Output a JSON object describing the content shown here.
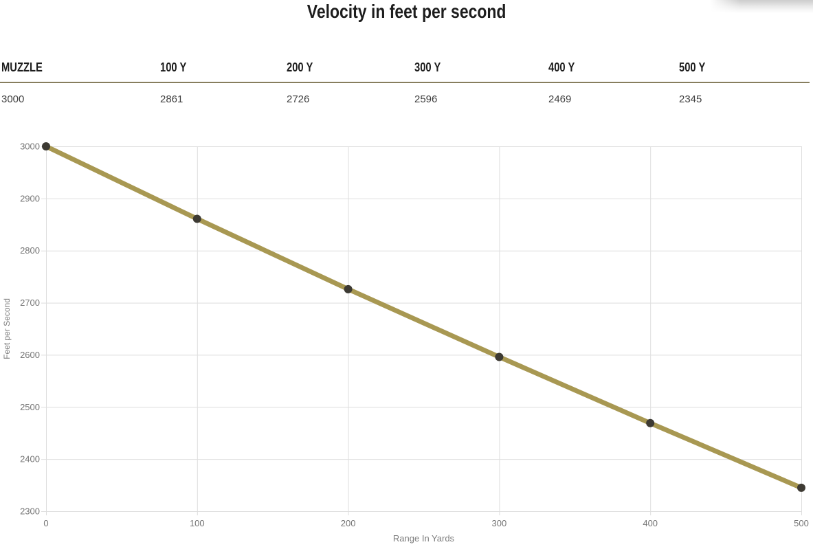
{
  "page": {
    "title": "Velocity in feet per second"
  },
  "table": {
    "headers": [
      "MUZZLE",
      "100 Y",
      "200 Y",
      "300 Y",
      "400 Y",
      "500 Y"
    ],
    "values": [
      "3000",
      "2861",
      "2726",
      "2596",
      "2469",
      "2345"
    ]
  },
  "chart_data": {
    "type": "line",
    "title": "Velocity in feet per second",
    "xlabel": "Range In Yards",
    "ylabel": "Feet per Second",
    "x": [
      0,
      100,
      200,
      300,
      400,
      500
    ],
    "values": [
      3000,
      2861,
      2726,
      2596,
      2469,
      2345
    ],
    "xlim": [
      0,
      500
    ],
    "ylim": [
      2300,
      3000
    ],
    "x_ticks": [
      0,
      100,
      200,
      300,
      400,
      500
    ],
    "y_ticks": [
      2300,
      2400,
      2500,
      2600,
      2700,
      2800,
      2900,
      3000
    ],
    "grid": true,
    "legend": "none",
    "line_color": "#a89852",
    "point_color": "#3d3a33",
    "grid_color": "#dedede",
    "tick_label_color": "#747474",
    "axis_title_color": "#7d7d7d"
  },
  "colors": {
    "title_text": "#1d1d1d",
    "table_value_text": "#3f3f3f",
    "table_divider": "#877e5e",
    "background": "#ffffff"
  }
}
